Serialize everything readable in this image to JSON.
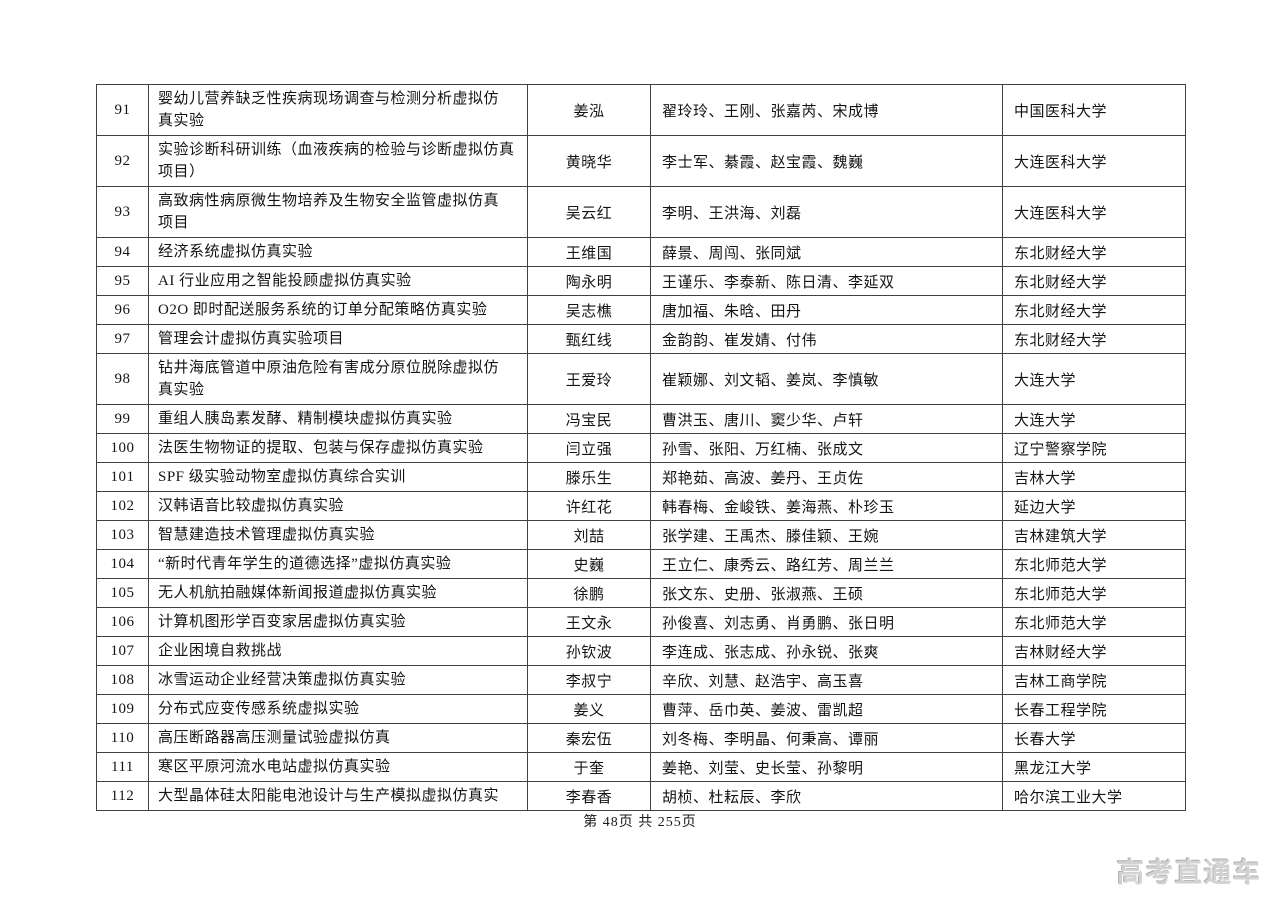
{
  "document": {
    "footer": {
      "page_info": "第 48页 共 255页"
    },
    "watermark": {
      "text": "高考直通车"
    }
  },
  "table": {
    "rows": [
      {
        "no": "91",
        "project": "婴幼儿营养缺乏性疾病现场调查与检测分析虚拟仿\n真实验",
        "leader": "姜泓",
        "members": "翟玲玲、王刚、张嘉芮、宋成博",
        "university": "中国医科大学"
      },
      {
        "no": "92",
        "project": "实验诊断科研训练（血液疾病的检验与诊断虚拟仿真\n项目）",
        "leader": "黄晓华",
        "members": "李士军、綦霞、赵宝霞、魏巍",
        "university": "大连医科大学"
      },
      {
        "no": "93",
        "project": "高致病性病原微生物培养及生物安全监管虚拟仿真\n项目",
        "leader": "吴云红",
        "members": "李明、王洪海、刘磊",
        "university": "大连医科大学"
      },
      {
        "no": "94",
        "project": "经济系统虚拟仿真实验",
        "leader": "王维国",
        "members": "薛景、周闯、张同斌",
        "university": "东北财经大学"
      },
      {
        "no": "95",
        "project": "AI 行业应用之智能投顾虚拟仿真实验",
        "leader": "陶永明",
        "members": "王谨乐、李泰新、陈日清、李延双",
        "university": "东北财经大学"
      },
      {
        "no": "96",
        "project": "O2O 即时配送服务系统的订单分配策略仿真实验",
        "leader": "吴志樵",
        "members": "唐加福、朱晗、田丹",
        "university": "东北财经大学"
      },
      {
        "no": "97",
        "project": "管理会计虚拟仿真实验项目",
        "leader": "甄红线",
        "members": "金韵韵、崔发婧、付伟",
        "university": "东北财经大学"
      },
      {
        "no": "98",
        "project": "钻井海底管道中原油危险有害成分原位脱除虚拟仿\n真实验",
        "leader": "王爱玲",
        "members": "崔颖娜、刘文韬、姜岚、李慎敏",
        "university": "大连大学"
      },
      {
        "no": "99",
        "project": "重组人胰岛素发酵、精制模块虚拟仿真实验",
        "leader": "冯宝民",
        "members": "曹洪玉、唐川、窦少华、卢轩",
        "university": "大连大学"
      },
      {
        "no": "100",
        "project": "法医生物物证的提取、包装与保存虚拟仿真实验",
        "leader": "闫立强",
        "members": "孙雪、张阳、万红楠、张成文",
        "university": "辽宁警察学院"
      },
      {
        "no": "101",
        "project": "SPF 级实验动物室虚拟仿真综合实训",
        "leader": "滕乐生",
        "members": "郑艳茹、高波、姜丹、王贞佐",
        "university": "吉林大学"
      },
      {
        "no": "102",
        "project": "汉韩语音比较虚拟仿真实验",
        "leader": "许红花",
        "members": "韩春梅、金峻铁、姜海燕、朴珍玉",
        "university": "延边大学"
      },
      {
        "no": "103",
        "project": "智慧建造技术管理虚拟仿真实验",
        "leader": "刘喆",
        "members": "张学建、王禹杰、滕佳颖、王婉",
        "university": "吉林建筑大学"
      },
      {
        "no": "104",
        "project": "“新时代青年学生的道德选择”虚拟仿真实验",
        "leader": "史巍",
        "members": "王立仁、康秀云、路红芳、周兰兰",
        "university": "东北师范大学"
      },
      {
        "no": "105",
        "project": "无人机航拍融媒体新闻报道虚拟仿真实验",
        "leader": "徐鹏",
        "members": "张文东、史册、张淑燕、王硕",
        "university": "东北师范大学"
      },
      {
        "no": "106",
        "project": "计算机图形学百变家居虚拟仿真实验",
        "leader": "王文永",
        "members": "孙俊喜、刘志勇、肖勇鹏、张日明",
        "university": "东北师范大学"
      },
      {
        "no": "107",
        "project": "企业困境自救挑战",
        "leader": "孙钦波",
        "members": "李连成、张志成、孙永锐、张爽",
        "university": "吉林财经大学"
      },
      {
        "no": "108",
        "project": "冰雪运动企业经营决策虚拟仿真实验",
        "leader": "李叔宁",
        "members": "辛欣、刘慧、赵浩宇、高玉喜",
        "university": "吉林工商学院"
      },
      {
        "no": "109",
        "project": "分布式应变传感系统虚拟实验",
        "leader": "姜义",
        "members": "曹萍、岳巾英、姜波、雷凯超",
        "university": "长春工程学院"
      },
      {
        "no": "110",
        "project": "高压断路器高压测量试验虚拟仿真",
        "leader": "秦宏伍",
        "members": "刘冬梅、李明晶、何秉高、谭丽",
        "university": "长春大学"
      },
      {
        "no": "111",
        "project": "寒区平原河流水电站虚拟仿真实验",
        "leader": "于奎",
        "members": "姜艳、刘莹、史长莹、孙黎明",
        "university": "黑龙江大学"
      },
      {
        "no": "112",
        "project": "大型晶体硅太阳能电池设计与生产模拟虚拟仿真实",
        "leader": "李春香",
        "members": "胡桢、杜耘辰、李欣",
        "university": "哈尔滨工业大学"
      }
    ]
  }
}
